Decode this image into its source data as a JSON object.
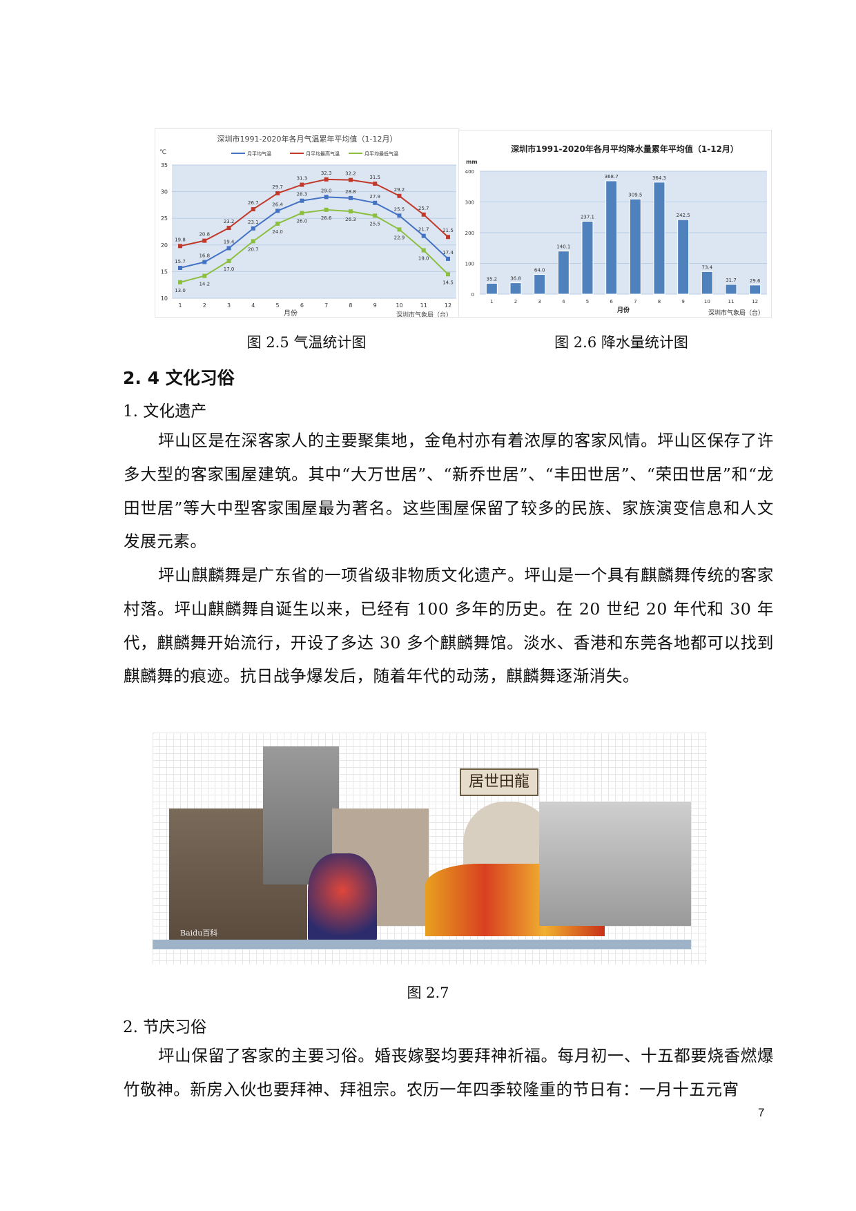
{
  "figures": [
    {
      "caption": "图 2.5 气温统计图"
    },
    {
      "caption": "图 2.6 降水量统计图"
    },
    {
      "caption": "图 2.7",
      "plaque_text": "居世田龍",
      "watermark": "Baidu百科"
    }
  ],
  "chart_data": [
    {
      "type": "line",
      "title": "深圳市1991-2020年各月气温累年平均值（1-12月）",
      "xlabel": "月份",
      "ylabel": "℃",
      "source": "深圳市气象局（台）",
      "categories": [
        "1",
        "2",
        "3",
        "4",
        "5",
        "6",
        "7",
        "8",
        "9",
        "10",
        "11",
        "12"
      ],
      "ylim": [
        10,
        35
      ],
      "yticks": [
        10,
        15,
        20,
        25,
        30,
        35
      ],
      "grid": true,
      "legend": "top",
      "series": [
        {
          "name": "月平均气温",
          "color": "#4472c4",
          "values": [
            15.7,
            16.8,
            19.4,
            23.1,
            26.4,
            28.3,
            29.0,
            28.8,
            27.9,
            25.5,
            21.7,
            17.4
          ]
        },
        {
          "name": "月平均最高气温",
          "color": "#c0392b",
          "values": [
            19.8,
            20.8,
            23.2,
            26.7,
            29.7,
            31.3,
            32.3,
            32.2,
            31.5,
            29.2,
            25.7,
            21.5
          ]
        },
        {
          "name": "月平均最低气温",
          "color": "#8cbf3f",
          "values": [
            13.0,
            14.2,
            17.0,
            20.7,
            24.0,
            26.0,
            26.6,
            26.3,
            25.5,
            22.9,
            19.0,
            14.5
          ]
        }
      ]
    },
    {
      "type": "bar",
      "title": "深圳市1991-2020年各月平均降水量累年平均值（1-12月）",
      "xlabel": "月份",
      "ylabel": "mm",
      "source": "深圳市气象局（台）",
      "categories": [
        "1",
        "2",
        "3",
        "4",
        "5",
        "6",
        "7",
        "8",
        "9",
        "10",
        "11",
        "12"
      ],
      "ylim": [
        0,
        400
      ],
      "yticks": [
        0,
        100,
        200,
        300,
        400
      ],
      "grid": true,
      "color": "#4f81bd",
      "values": [
        35.2,
        36.8,
        64.0,
        140.1,
        237.1,
        368.7,
        309.5,
        364.3,
        242.5,
        73.4,
        31.7,
        29.6
      ]
    }
  ],
  "section": {
    "title": "2. 4 文化习俗"
  },
  "sub1": {
    "title": "1. 文化遗产",
    "paragraphs": [
      "坪山区是在深客家人的主要聚集地，金龟村亦有着浓厚的客家风情。坪山区保存了许多大型的客家围屋建筑。其中“大万世居”、“新乔世居”、“丰田世居”、“荣田世居”和“龙田世居”等大中型客家围屋最为著名。这些围屋保留了较多的民族、家族演变信息和人文发展元素。",
      "坪山麒麟舞是广东省的一项省级非物质文化遗产。坪山是一个具有麒麟舞传统的客家村落。坪山麒麟舞自诞生以来，已经有 100 多年的历史。在 20 世纪 20 年代和 30 年代，麒麟舞开始流行，开设了多达 30 多个麒麟舞馆。淡水、香港和东莞各地都可以找到麒麟舞的痕迹。抗日战争爆发后，随着年代的动荡，麒麟舞逐渐消失。"
    ]
  },
  "sub2": {
    "title": "2. 节庆习俗",
    "paragraphs": [
      "坪山保留了客家的主要习俗。婚丧嫁娶均要拜神祈福。每月初一、十五都要烧香燃爆竹敬神。新房入伙也要拜神、拜祖宗。农历一年四季较隆重的节日有：一月十五元宵"
    ]
  },
  "page_number": "7"
}
